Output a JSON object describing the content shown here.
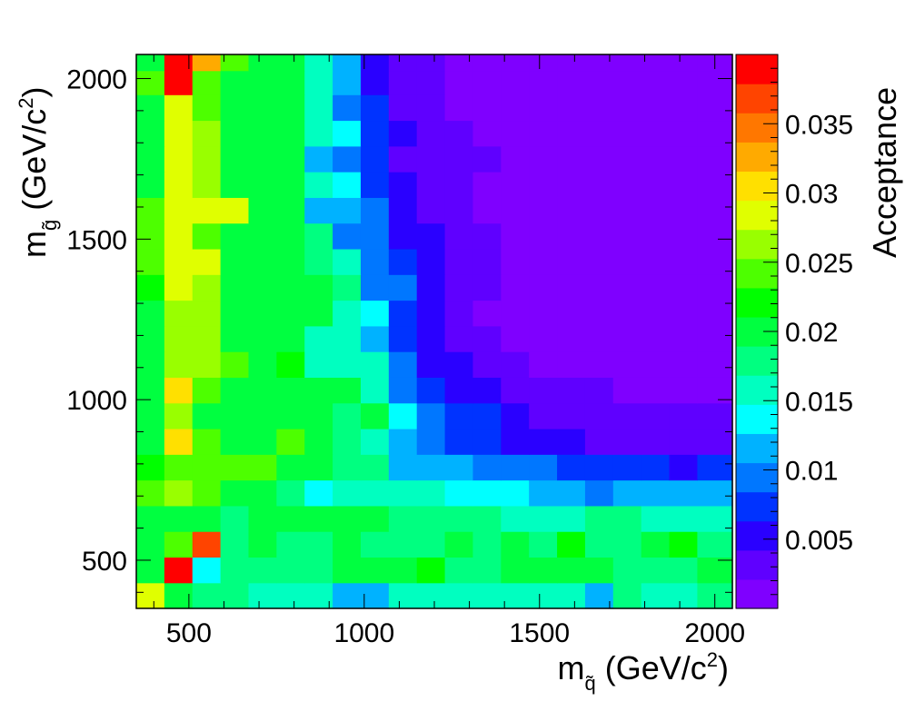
{
  "chart_data": {
    "type": "heatmap",
    "title": "",
    "x_title": {
      "main": "m",
      "sub": "q̃",
      "rest": " (GeV/c",
      "sup": "2",
      "end": ")"
    },
    "y_title": {
      "main": "m",
      "sub": "g̃",
      "rest": " (GeV/c",
      "sup": "2",
      "end": ")"
    },
    "z_title": "Acceptance",
    "xlim": [
      350,
      2050
    ],
    "ylim": [
      350,
      2075
    ],
    "zlim": [
      0,
      0.04
    ],
    "x_ticks": [
      500,
      1000,
      1500,
      2000
    ],
    "x_tick_labels": [
      "500",
      "1000",
      "1500",
      "2000"
    ],
    "y_ticks": [
      500,
      1000,
      1500,
      2000
    ],
    "y_tick_labels": [
      "500",
      "1000",
      "1500",
      "2000"
    ],
    "z_ticks": [
      0.005,
      0.01,
      0.015,
      0.02,
      0.025,
      0.03,
      0.035
    ],
    "z_tick_labels": [
      "0.005",
      "0.01",
      "0.015",
      "0.02",
      "0.025",
      "0.03",
      "0.035"
    ],
    "x_edges": [
      350,
      430,
      510,
      590,
      670,
      750,
      830,
      910,
      990,
      1070,
      1150,
      1230,
      1310,
      1390,
      1470,
      1550,
      1630,
      1710,
      1790,
      1870,
      1950,
      2050
    ],
    "y_edges": [
      350,
      430,
      510,
      590,
      670,
      750,
      830,
      910,
      990,
      1070,
      1150,
      1230,
      1310,
      1390,
      1470,
      1550,
      1630,
      1710,
      1790,
      1870,
      1950,
      2025,
      2075
    ],
    "palette": [
      "#7f00ff",
      "#5f00ff",
      "#2a00ff",
      "#0033ff",
      "#0077ff",
      "#00b2ff",
      "#00ffff",
      "#00ffc0",
      "#00ff80",
      "#00ff40",
      "#00ff00",
      "#4dff00",
      "#99ff00",
      "#e0ff00",
      "#ffe000",
      "#ffaa00",
      "#ff7700",
      "#ff4400",
      "#ff0000"
    ],
    "values": [
      [
        0.029,
        0.019,
        0.017,
        0.017,
        0.016,
        0.016,
        0.016,
        0.012,
        0.012,
        0.015,
        0.015,
        0.015,
        0.015,
        0.015,
        0.015,
        0.015,
        0.012,
        0.017,
        0.015,
        0.015,
        0.017
      ],
      [
        0.021,
        0.039,
        0.014,
        0.018,
        0.018,
        0.018,
        0.018,
        0.021,
        0.021,
        0.019,
        0.022,
        0.017,
        0.017,
        0.021,
        0.021,
        0.019,
        0.019,
        0.017,
        0.017,
        0.018,
        0.021
      ],
      [
        0.021,
        0.025,
        0.037,
        0.018,
        0.021,
        0.018,
        0.018,
        0.02,
        0.018,
        0.018,
        0.018,
        0.021,
        0.018,
        0.021,
        0.018,
        0.022,
        0.017,
        0.018,
        0.021,
        0.022,
        0.018
      ],
      [
        0.021,
        0.021,
        0.021,
        0.018,
        0.019,
        0.019,
        0.019,
        0.02,
        0.02,
        0.017,
        0.017,
        0.017,
        0.017,
        0.016,
        0.016,
        0.016,
        0.017,
        0.017,
        0.016,
        0.015,
        0.015
      ],
      [
        0.024,
        0.027,
        0.025,
        0.021,
        0.02,
        0.018,
        0.014,
        0.016,
        0.016,
        0.015,
        0.015,
        0.013,
        0.013,
        0.013,
        0.011,
        0.011,
        0.01,
        0.012,
        0.012,
        0.011,
        0.012
      ],
      [
        0.022,
        0.024,
        0.024,
        0.024,
        0.024,
        0.021,
        0.019,
        0.017,
        0.017,
        0.012,
        0.011,
        0.011,
        0.009,
        0.009,
        0.009,
        0.008,
        0.008,
        0.008,
        0.008,
        0.006,
        0.007
      ],
      [
        0.021,
        0.031,
        0.024,
        0.021,
        0.02,
        0.024,
        0.021,
        0.018,
        0.015,
        0.012,
        0.009,
        0.007,
        0.007,
        0.006,
        0.005,
        0.005,
        0.004,
        0.004,
        0.004,
        0.003,
        0.003
      ],
      [
        0.02,
        0.026,
        0.021,
        0.021,
        0.021,
        0.021,
        0.019,
        0.018,
        0.019,
        0.013,
        0.01,
        0.007,
        0.007,
        0.005,
        0.004,
        0.004,
        0.004,
        0.003,
        0.003,
        0.003,
        0.003
      ],
      [
        0.02,
        0.03,
        0.025,
        0.021,
        0.021,
        0.021,
        0.021,
        0.02,
        0.016,
        0.01,
        0.008,
        0.006,
        0.005,
        0.004,
        0.004,
        0.004,
        0.003,
        0.002,
        0.002,
        0.002,
        0.002
      ],
      [
        0.02,
        0.027,
        0.026,
        0.025,
        0.021,
        0.023,
        0.016,
        0.016,
        0.016,
        0.01,
        0.006,
        0.006,
        0.004,
        0.004,
        0.002,
        0.002,
        0.002,
        0.002,
        0.002,
        0.002,
        0.002
      ],
      [
        0.02,
        0.026,
        0.026,
        0.021,
        0.021,
        0.021,
        0.016,
        0.015,
        0.012,
        0.008,
        0.006,
        0.004,
        0.004,
        0.002,
        0.002,
        0.002,
        0.002,
        0.002,
        0.002,
        0.002,
        0.002
      ],
      [
        0.02,
        0.027,
        0.026,
        0.021,
        0.019,
        0.019,
        0.019,
        0.016,
        0.013,
        0.008,
        0.006,
        0.004,
        0.002,
        0.002,
        0.002,
        0.002,
        0.002,
        0.002,
        0.002,
        0.002,
        0.002
      ],
      [
        0.023,
        0.028,
        0.026,
        0.021,
        0.021,
        0.021,
        0.019,
        0.017,
        0.01,
        0.009,
        0.005,
        0.004,
        0.004,
        0.002,
        0.002,
        0.002,
        0.002,
        0.002,
        0.002,
        0.002,
        0.002
      ],
      [
        0.024,
        0.029,
        0.028,
        0.021,
        0.021,
        0.021,
        0.017,
        0.015,
        0.01,
        0.008,
        0.005,
        0.004,
        0.004,
        0.002,
        0.002,
        0.002,
        0.002,
        0.002,
        0.002,
        0.002,
        0.002
      ],
      [
        0.025,
        0.029,
        0.025,
        0.021,
        0.021,
        0.021,
        0.017,
        0.01,
        0.01,
        0.005,
        0.005,
        0.004,
        0.004,
        0.002,
        0.002,
        0.002,
        0.002,
        0.002,
        0.002,
        0.002,
        0.002
      ],
      [
        0.025,
        0.028,
        0.028,
        0.028,
        0.02,
        0.02,
        0.012,
        0.012,
        0.009,
        0.005,
        0.004,
        0.003,
        0.002,
        0.002,
        0.002,
        0.002,
        0.002,
        0.002,
        0.002,
        0.002,
        0.002
      ],
      [
        0.02,
        0.029,
        0.026,
        0.021,
        0.021,
        0.02,
        0.016,
        0.013,
        0.007,
        0.005,
        0.004,
        0.003,
        0.002,
        0.002,
        0.002,
        0.002,
        0.002,
        0.002,
        0.002,
        0.002,
        0.002
      ],
      [
        0.021,
        0.029,
        0.027,
        0.021,
        0.019,
        0.019,
        0.012,
        0.01,
        0.007,
        0.004,
        0.003,
        0.003,
        0.003,
        0.002,
        0.002,
        0.002,
        0.002,
        0.002,
        0.002,
        0.002,
        0.002
      ],
      [
        0.021,
        0.029,
        0.026,
        0.021,
        0.02,
        0.02,
        0.016,
        0.014,
        0.008,
        0.005,
        0.004,
        0.003,
        0.002,
        0.002,
        0.002,
        0.002,
        0.002,
        0.002,
        0.002,
        0.002,
        0.002
      ],
      [
        0.021,
        0.029,
        0.025,
        0.021,
        0.021,
        0.019,
        0.016,
        0.009,
        0.007,
        0.004,
        0.004,
        0.002,
        0.002,
        0.002,
        0.002,
        0.002,
        0.002,
        0.002,
        0.002,
        0.002,
        0.002
      ],
      [
        0.024,
        0.038,
        0.024,
        0.021,
        0.021,
        0.019,
        0.016,
        0.011,
        0.006,
        0.004,
        0.004,
        0.002,
        0.002,
        0.002,
        0.002,
        0.002,
        0.002,
        0.002,
        0.002,
        0.002,
        0.002
      ],
      [
        0.021,
        0.038,
        0.033,
        0.024,
        0.021,
        0.019,
        0.016,
        0.011,
        0.006,
        0.004,
        0.004,
        0.002,
        0.002,
        0.002,
        0.002,
        0.002,
        0.002,
        0.002,
        0.002,
        0.002,
        0.002
      ]
    ]
  }
}
